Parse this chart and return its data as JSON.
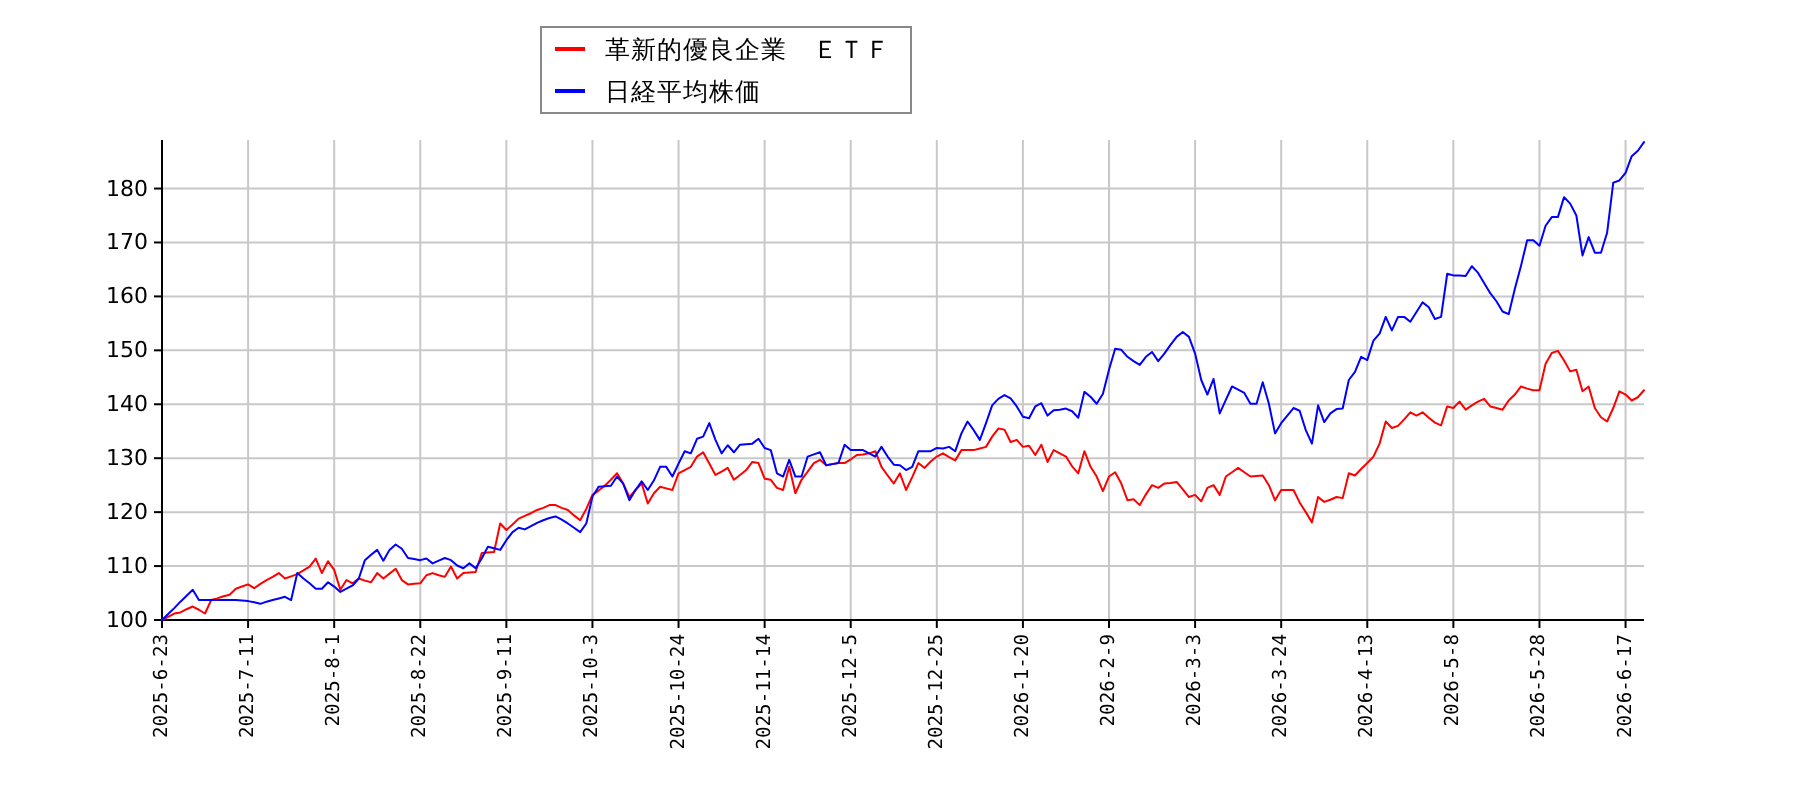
{
  "chart_data": {
    "type": "line",
    "categories": [
      "2025-6-23",
      null,
      null,
      null,
      null,
      null,
      null,
      null,
      null,
      null,
      null,
      null,
      null,
      null,
      "2025-7-11",
      null,
      null,
      null,
      null,
      null,
      null,
      null,
      null,
      null,
      null,
      null,
      null,
      null,
      "2025-8-1",
      null,
      null,
      null,
      null,
      null,
      null,
      null,
      null,
      null,
      null,
      null,
      null,
      null,
      "2025-8-22",
      null,
      null,
      null,
      null,
      null,
      null,
      null,
      null,
      null,
      null,
      null,
      null,
      null,
      "2025-9-11",
      null,
      null,
      null,
      null,
      null,
      null,
      null,
      null,
      null,
      null,
      null,
      null,
      null,
      "2025-10-3",
      null,
      null,
      null,
      null,
      null,
      null,
      null,
      null,
      null,
      null,
      null,
      null,
      null,
      "2025-10-24",
      null,
      null,
      null,
      null,
      null,
      null,
      null,
      null,
      null,
      null,
      null,
      null,
      null,
      "2025-11-14",
      null,
      null,
      null,
      null,
      null,
      null,
      null,
      null,
      null,
      null,
      null,
      null,
      null,
      "2025-12-5",
      null,
      null,
      null,
      null,
      null,
      null,
      null,
      null,
      null,
      null,
      null,
      null,
      null,
      "2025-12-25",
      null,
      null,
      null,
      null,
      null,
      null,
      null,
      null,
      null,
      null,
      null,
      null,
      null,
      "2026-1-20",
      null,
      null,
      null,
      null,
      null,
      null,
      null,
      null,
      null,
      null,
      null,
      null,
      null,
      "2026-2-9",
      null,
      null,
      null,
      null,
      null,
      null,
      null,
      null,
      null,
      null,
      null,
      null,
      null,
      "2026-3-3",
      null,
      null,
      null,
      null,
      null,
      null,
      null,
      null,
      null,
      null,
      null,
      null,
      null,
      "2026-3-24",
      null,
      null,
      null,
      null,
      null,
      null,
      null,
      null,
      null,
      null,
      null,
      null,
      null,
      "2026-4-13",
      null,
      null,
      null,
      null,
      null,
      null,
      null,
      null,
      null,
      null,
      null,
      null,
      null,
      "2026-5-8",
      null,
      null,
      null,
      null,
      null,
      null,
      null,
      null,
      null,
      null,
      null,
      null,
      null,
      "2026-5-28",
      null,
      null,
      null,
      null,
      null,
      null,
      null,
      null,
      null,
      null,
      null,
      null,
      null,
      "2026-6-17",
      null,
      null,
      null
    ],
    "ylim": [
      100,
      189
    ],
    "yticks": [
      100,
      110,
      120,
      130,
      140,
      150,
      160,
      170,
      180
    ],
    "grid": true,
    "legend": "top",
    "series": [
      {
        "name": "革新的優良企業　ＥＴＦ",
        "color": "#ff0000",
        "values": [
          100,
          100.6,
          101.2,
          101.4,
          102.0,
          102.5,
          101.9,
          101.2,
          103.7,
          104.0,
          104.4,
          104.7,
          105.8,
          106.2,
          106.6,
          105.9,
          106.7,
          107.4,
          108.0,
          108.7,
          107.7,
          108.1,
          108.5,
          109.2,
          109.9,
          111.4,
          108.7,
          110.9,
          109.3,
          105.6,
          107.4,
          106.8,
          107.7,
          107.3,
          107.0,
          108.7,
          107.7,
          108.6,
          109.5,
          107.4,
          106.6,
          106.7,
          106.8,
          108.3,
          108.7,
          108.3,
          108.0,
          109.9,
          107.7,
          108.7,
          108.8,
          108.9,
          112.4,
          112.5,
          112.6,
          117.9,
          116.7,
          117.7,
          118.8,
          119.3,
          119.8,
          120.4,
          120.8,
          121.3,
          121.3,
          120.8,
          120.4,
          119.4,
          118.5,
          120.6,
          123.2,
          124.0,
          124.9,
          126.0,
          127.2,
          125.3,
          122.8,
          124.1,
          125.3,
          121.6,
          123.5,
          124.7,
          124.4,
          124.1,
          127.2,
          127.8,
          128.4,
          130.3,
          131.1,
          129.0,
          126.9,
          127.5,
          128.2,
          126.0,
          126.9,
          127.8,
          129.3,
          129.1,
          126.2,
          126.0,
          124.5,
          124.1,
          128.4,
          123.5,
          126.0,
          127.5,
          129.1,
          129.7,
          128.7,
          128.9,
          129.1,
          129.1,
          129.8,
          130.6,
          130.7,
          130.9,
          131.3,
          128.4,
          126.8,
          125.3,
          127.2,
          124.1,
          126.5,
          129.1,
          128.2,
          129.4,
          130.3,
          130.9,
          130.2,
          129.6,
          131.5,
          131.5,
          131.5,
          131.8,
          132.1,
          134.0,
          135.5,
          135.3,
          133.0,
          133.4,
          132.1,
          132.3,
          130.6,
          132.5,
          129.3,
          131.5,
          130.9,
          130.3,
          128.5,
          127.2,
          131.3,
          128.4,
          126.6,
          123.9,
          126.6,
          127.4,
          125.3,
          122.2,
          122.4,
          121.3,
          123.3,
          125.0,
          124.5,
          125.3,
          125.4,
          125.6,
          124.2,
          122.8,
          123.2,
          122.0,
          124.5,
          125.0,
          123.2,
          126.6,
          127.4,
          128.2,
          127.4,
          126.6,
          126.7,
          126.8,
          125.0,
          122.2,
          124.1,
          124.1,
          124.1,
          121.8,
          120.0,
          118.1,
          122.8,
          121.9,
          122.3,
          122.8,
          122.6,
          127.2,
          126.8,
          128.0,
          129.1,
          130.3,
          132.7,
          136.8,
          135.6,
          136.0,
          137.2,
          138.5,
          137.9,
          138.5,
          137.5,
          136.6,
          136.1,
          139.6,
          139.3,
          140.5,
          139.0,
          139.8,
          140.5,
          141.0,
          139.6,
          139.3,
          139.0,
          140.7,
          141.8,
          143.3,
          142.9,
          142.6,
          142.6,
          147.5,
          149.5,
          149.9,
          148.1,
          146.1,
          146.4,
          142.4,
          143.3,
          139.3,
          137.6,
          136.8,
          139.3,
          142.4,
          141.8,
          140.7,
          141.3,
          142.6
        ]
      },
      {
        "name": "日経平均株価",
        "color": "#0000ff",
        "values": [
          100,
          101.1,
          102.2,
          103.4,
          104.5,
          105.6,
          103.7,
          103.7,
          103.7,
          103.7,
          103.7,
          103.7,
          103.7,
          103.6,
          103.5,
          103.3,
          103.0,
          103.4,
          103.7,
          104.0,
          104.3,
          103.7,
          108.7,
          107.7,
          106.8,
          105.8,
          105.8,
          107.0,
          106.2,
          105.2,
          105.8,
          106.4,
          107.7,
          111.1,
          112.1,
          113.0,
          111.0,
          113.0,
          114.0,
          113.2,
          111.5,
          111.3,
          111.1,
          111.4,
          110.5,
          111.0,
          111.5,
          111.1,
          110.1,
          109.6,
          110.5,
          109.6,
          111.4,
          113.6,
          113.3,
          113.0,
          114.8,
          116.3,
          117.1,
          116.8,
          117.4,
          118.0,
          118.5,
          118.9,
          119.2,
          118.6,
          117.9,
          117.1,
          116.3,
          117.9,
          122.9,
          124.7,
          124.8,
          124.9,
          126.6,
          125.3,
          122.2,
          124.1,
          125.7,
          124.1,
          125.9,
          128.4,
          128.4,
          126.6,
          129.0,
          131.3,
          130.9,
          133.6,
          134.0,
          136.5,
          133.4,
          130.9,
          132.4,
          131.1,
          132.5,
          132.6,
          132.7,
          133.6,
          131.9,
          131.5,
          127.2,
          126.6,
          129.7,
          126.6,
          126.6,
          130.3,
          130.7,
          131.1,
          128.7,
          128.9,
          129.1,
          132.5,
          131.5,
          131.5,
          131.5,
          130.9,
          130.3,
          132.1,
          130.3,
          128.8,
          128.7,
          127.8,
          128.4,
          131.3,
          131.3,
          131.3,
          131.9,
          131.8,
          132.1,
          131.3,
          134.6,
          136.8,
          135.2,
          133.4,
          136.5,
          139.8,
          141.0,
          141.7,
          141.1,
          139.6,
          137.7,
          137.4,
          139.6,
          140.2,
          137.9,
          138.9,
          139.0,
          139.2,
          138.7,
          137.5,
          142.3,
          141.4,
          140.1,
          141.9,
          146.4,
          150.3,
          150.1,
          148.8,
          148.0,
          147.3,
          148.8,
          149.7,
          148.0,
          149.4,
          151.0,
          152.5,
          153.4,
          152.5,
          149.4,
          144.5,
          141.8,
          144.7,
          138.3,
          140.8,
          143.3,
          142.7,
          142.1,
          140.1,
          140.1,
          144.1,
          140.1,
          134.6,
          136.5,
          137.9,
          139.3,
          138.8,
          135.2,
          132.7,
          139.8,
          136.7,
          138.3,
          139.1,
          139.2,
          144.5,
          146.0,
          148.8,
          148.2,
          151.8,
          153.1,
          156.2,
          153.7,
          156.2,
          156.2,
          155.3,
          157.1,
          158.9,
          158.0,
          155.8,
          156.2,
          164.2,
          163.9,
          163.9,
          163.8,
          165.6,
          164.4,
          162.5,
          160.6,
          159.1,
          157.2,
          156.7,
          161.4,
          165.7,
          170.4,
          170.4,
          169.4,
          173.1,
          174.7,
          174.7,
          178.4,
          177.2,
          175.0,
          167.6,
          171.0,
          168.1,
          168.1,
          171.8,
          181.1,
          181.5,
          182.9,
          186.0,
          187.0,
          188.6
        ]
      }
    ]
  }
}
